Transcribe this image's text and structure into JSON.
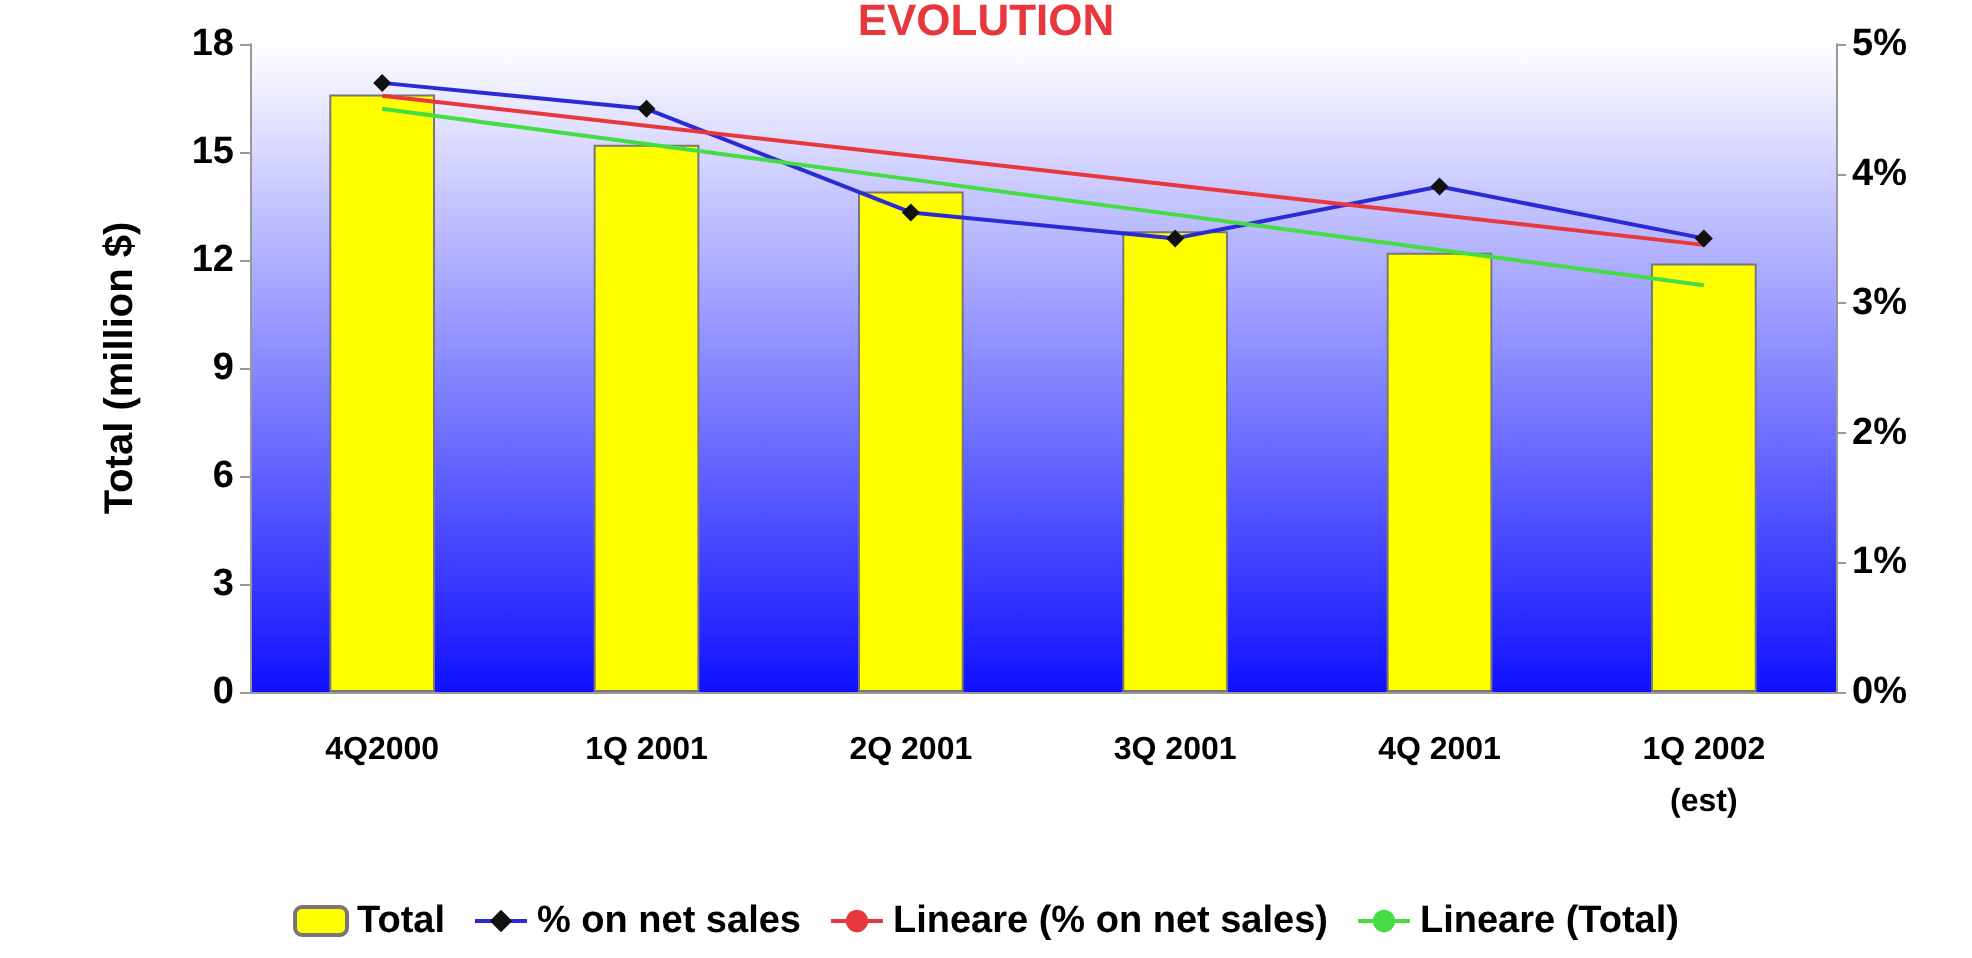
{
  "chart_data": {
    "type": "bar",
    "title": "EVOLUTION",
    "ylabel": "Total (million $)",
    "categories": [
      "4Q2000",
      "1Q 2001",
      "2Q 2001",
      "3Q 2001",
      "4Q 2001",
      "1Q 2002\n(est)"
    ],
    "series": [
      {
        "name": "Total",
        "color": "#ffff00",
        "values": [
          16.6,
          15.2,
          13.9,
          12.8,
          12.2,
          11.9
        ]
      },
      {
        "name": "% on net sales",
        "type": "line",
        "axis": "y2",
        "color": "#2b2bd6",
        "marker": "diamond",
        "values": [
          4.7,
          4.5,
          3.7,
          3.5,
          3.9,
          3.5
        ]
      },
      {
        "name": "Lineare (% on net sales)",
        "type": "line",
        "axis": "y2",
        "color": "#e8383d",
        "marker": "none",
        "values": [
          4.6,
          4.37,
          4.14,
          3.91,
          3.68,
          3.45
        ]
      },
      {
        "name": "Lineare (Total)",
        "type": "line",
        "color": "#44dd44",
        "marker": "none",
        "values": [
          16.2,
          15.22,
          14.24,
          13.26,
          12.28,
          11.3
        ]
      }
    ],
    "ylim": [
      0,
      18
    ],
    "yticks": [
      0,
      3,
      6,
      9,
      12,
      15,
      18
    ],
    "y2lim": [
      0,
      5
    ],
    "y2ticks": [
      {
        "value": 0,
        "label": "0%"
      },
      {
        "value": 1,
        "label": "1%"
      },
      {
        "value": 2,
        "label": "2%"
      },
      {
        "value": 3,
        "label": "3%"
      },
      {
        "value": 4,
        "label": "4%"
      },
      {
        "value": 5,
        "label": "5%"
      }
    ],
    "grid": false,
    "legend": "bottom"
  }
}
